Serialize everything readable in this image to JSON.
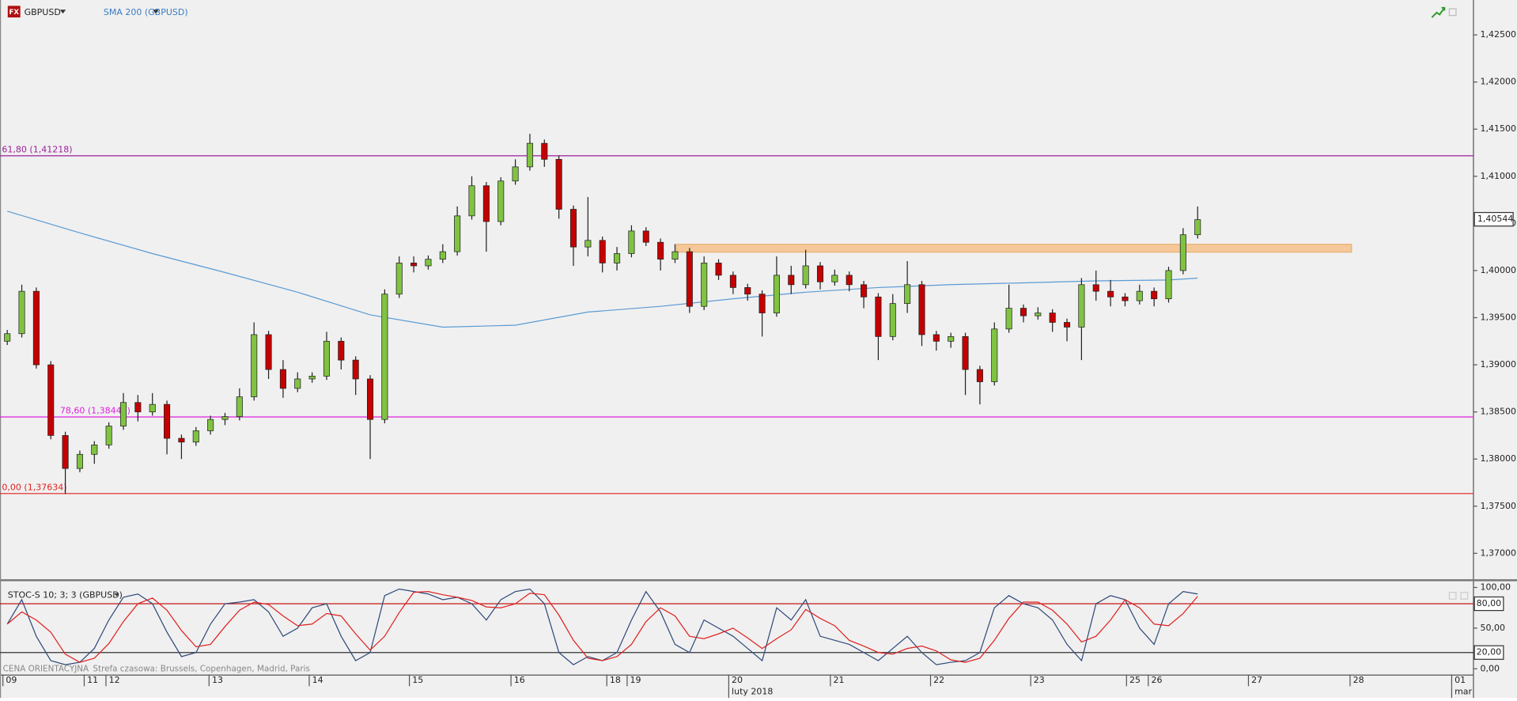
{
  "chart_data": [
    {
      "type": "candlestick",
      "icon": "FX",
      "symbol": "GBPUSD",
      "ylim": [
        1.3673,
        1.4287
      ],
      "yticks": [
        {
          "value": 1.425,
          "label": "1,42500"
        },
        {
          "value": 1.42,
          "label": "1,42000"
        },
        {
          "value": 1.415,
          "label": "1,41500"
        },
        {
          "value": 1.41,
          "label": "1,41000"
        },
        {
          "value": 1.405,
          "label": "1,40500"
        },
        {
          "value": 1.4,
          "label": "1,40000"
        },
        {
          "value": 1.395,
          "label": "1,39500"
        },
        {
          "value": 1.39,
          "label": "1,39000"
        },
        {
          "value": 1.385,
          "label": "1,38500"
        },
        {
          "value": 1.38,
          "label": "1,38000"
        },
        {
          "value": 1.375,
          "label": "1,37500"
        },
        {
          "value": 1.37,
          "label": "1,37000"
        }
      ],
      "xlim": [
        -0.5,
        101
      ],
      "xticks": [
        {
          "value": -0.3,
          "label": "09"
        },
        {
          "value": 5.3,
          "label": "11"
        },
        {
          "value": 6.8,
          "label": "12"
        },
        {
          "value": 13.9,
          "label": "13"
        },
        {
          "value": 20.8,
          "label": "14"
        },
        {
          "value": 27.7,
          "label": "15"
        },
        {
          "value": 34.7,
          "label": "16"
        },
        {
          "value": 41.3,
          "label": "18"
        },
        {
          "value": 42.7,
          "label": "19"
        },
        {
          "value": 49.7,
          "label": "20"
        },
        {
          "value": 56.7,
          "label": "21"
        },
        {
          "value": 63.6,
          "label": "22"
        },
        {
          "value": 70.5,
          "label": "23"
        },
        {
          "value": 77.1,
          "label": "25"
        },
        {
          "value": 78.6,
          "label": "26"
        },
        {
          "value": 85.5,
          "label": "27"
        },
        {
          "value": 92.5,
          "label": "28"
        },
        {
          "value": 99.5,
          "label": "01"
        }
      ],
      "month_ticks": [
        {
          "value": 49.7,
          "label": "luty 2018"
        },
        {
          "value": 99.5,
          "label": "mar"
        }
      ],
      "colors": {
        "up": "#80c342",
        "down": "#c40000"
      },
      "ohlc": [
        [
          1.3925,
          1.3937,
          1.3921,
          1.3933
        ],
        [
          1.3933,
          1.3985,
          1.3929,
          1.3978
        ],
        [
          1.3978,
          1.3982,
          1.3896,
          1.39
        ],
        [
          1.39,
          1.3904,
          1.3821,
          1.3825
        ],
        [
          1.3825,
          1.3829,
          1.3763,
          1.379
        ],
        [
          1.379,
          1.3809,
          1.3786,
          1.3805
        ],
        [
          1.3805,
          1.3819,
          1.3795,
          1.3815
        ],
        [
          1.3815,
          1.3839,
          1.3811,
          1.3835
        ],
        [
          1.3835,
          1.387,
          1.3831,
          1.386
        ],
        [
          1.386,
          1.3868,
          1.384,
          1.385
        ],
        [
          1.385,
          1.387,
          1.3846,
          1.3858
        ],
        [
          1.3858,
          1.3862,
          1.3805,
          1.3822
        ],
        [
          1.3822,
          1.3826,
          1.38,
          1.3818
        ],
        [
          1.3818,
          1.3834,
          1.3814,
          1.383
        ],
        [
          1.383,
          1.3846,
          1.3826,
          1.3842
        ],
        [
          1.3842,
          1.3849,
          1.3836,
          1.3845
        ],
        [
          1.3845,
          1.3875,
          1.3841,
          1.3866
        ],
        [
          1.3866,
          1.3945,
          1.3862,
          1.3932
        ],
        [
          1.3932,
          1.3936,
          1.3885,
          1.3895
        ],
        [
          1.3895,
          1.3905,
          1.3865,
          1.3875
        ],
        [
          1.3875,
          1.3892,
          1.3871,
          1.3885
        ],
        [
          1.3885,
          1.3892,
          1.3881,
          1.3888
        ],
        [
          1.3888,
          1.3935,
          1.3884,
          1.3925
        ],
        [
          1.3925,
          1.3929,
          1.3895,
          1.3905
        ],
        [
          1.3905,
          1.3909,
          1.3868,
          1.3885
        ],
        [
          1.3885,
          1.3889,
          1.38,
          1.3842
        ],
        [
          1.3842,
          1.398,
          1.3838,
          1.3975
        ],
        [
          1.3975,
          1.4015,
          1.3971,
          1.4008
        ],
        [
          1.4008,
          1.4015,
          1.3998,
          1.4005
        ],
        [
          1.4005,
          1.4016,
          1.4001,
          1.4012
        ],
        [
          1.4012,
          1.4028,
          1.4008,
          1.402
        ],
        [
          1.402,
          1.4068,
          1.4016,
          1.4058
        ],
        [
          1.4058,
          1.41,
          1.4054,
          1.409
        ],
        [
          1.409,
          1.4094,
          1.402,
          1.4052
        ],
        [
          1.4052,
          1.4099,
          1.4048,
          1.4095
        ],
        [
          1.4095,
          1.4118,
          1.4091,
          1.411
        ],
        [
          1.411,
          1.4145,
          1.4106,
          1.4135
        ],
        [
          1.4135,
          1.4139,
          1.411,
          1.4118
        ],
        [
          1.4118,
          1.4122,
          1.4055,
          1.4065
        ],
        [
          1.4065,
          1.4069,
          1.4005,
          1.4025
        ],
        [
          1.4025,
          1.4078,
          1.4015,
          1.4032
        ],
        [
          1.4032,
          1.4036,
          1.3998,
          1.4008
        ],
        [
          1.4008,
          1.4025,
          1.4,
          1.4018
        ],
        [
          1.4018,
          1.4048,
          1.4014,
          1.4042
        ],
        [
          1.4042,
          1.4046,
          1.4026,
          1.403
        ],
        [
          1.403,
          1.4034,
          1.4,
          1.4012
        ],
        [
          1.4012,
          1.4028,
          1.4008,
          1.402
        ],
        [
          1.402,
          1.4024,
          1.3955,
          1.3962
        ],
        [
          1.3962,
          1.4015,
          1.3958,
          1.4008
        ],
        [
          1.4008,
          1.4012,
          1.399,
          1.3995
        ],
        [
          1.3995,
          1.3999,
          1.3975,
          1.3982
        ],
        [
          1.3982,
          1.3986,
          1.3968,
          1.3975
        ],
        [
          1.3975,
          1.3979,
          1.393,
          1.3955
        ],
        [
          1.3955,
          1.4015,
          1.3951,
          1.3995
        ],
        [
          1.3995,
          1.4005,
          1.3975,
          1.3985
        ],
        [
          1.3985,
          1.4022,
          1.3981,
          1.4005
        ],
        [
          1.4005,
          1.4009,
          1.398,
          1.3988
        ],
        [
          1.3988,
          1.4001,
          1.3984,
          1.3995
        ],
        [
          1.3995,
          1.3999,
          1.3978,
          1.3985
        ],
        [
          1.3985,
          1.3989,
          1.396,
          1.3972
        ],
        [
          1.3972,
          1.3976,
          1.3905,
          1.393
        ],
        [
          1.393,
          1.3975,
          1.3926,
          1.3965
        ],
        [
          1.3965,
          1.401,
          1.3955,
          1.3985
        ],
        [
          1.3985,
          1.3989,
          1.392,
          1.3932
        ],
        [
          1.3932,
          1.3936,
          1.3915,
          1.3925
        ],
        [
          1.3925,
          1.3934,
          1.3918,
          1.393
        ],
        [
          1.393,
          1.3934,
          1.3868,
          1.3895
        ],
        [
          1.3895,
          1.3899,
          1.3858,
          1.3882
        ],
        [
          1.3882,
          1.3945,
          1.3878,
          1.3938
        ],
        [
          1.3938,
          1.3985,
          1.3934,
          1.396
        ],
        [
          1.396,
          1.3964,
          1.3945,
          1.3952
        ],
        [
          1.3952,
          1.3961,
          1.3948,
          1.3955
        ],
        [
          1.3955,
          1.3959,
          1.3935,
          1.3945
        ],
        [
          1.3945,
          1.3949,
          1.3925,
          1.394
        ],
        [
          1.394,
          1.3992,
          1.3905,
          1.3985
        ],
        [
          1.3985,
          1.4,
          1.3968,
          1.3978
        ],
        [
          1.3978,
          1.399,
          1.3962,
          1.3972
        ],
        [
          1.3972,
          1.3976,
          1.3962,
          1.3968
        ],
        [
          1.3968,
          1.3985,
          1.3964,
          1.3978
        ],
        [
          1.3978,
          1.3982,
          1.3962,
          1.397
        ],
        [
          1.397,
          1.4004,
          1.3966,
          1.4
        ],
        [
          1.4,
          1.4045,
          1.3996,
          1.4038
        ],
        [
          1.4038,
          1.4068,
          1.4034,
          1.4054
        ]
      ],
      "sma": {
        "name": "SMA 200 (GBPUSD)",
        "color": "#5b9bd5",
        "x": [
          0,
          5,
          10,
          15,
          20,
          25,
          30,
          35,
          40,
          45,
          50,
          55,
          60,
          65,
          70,
          75,
          80,
          82
        ],
        "values": [
          1.4063,
          1.404,
          1.4018,
          1.3998,
          1.3977,
          1.3953,
          1.394,
          1.3942,
          1.3956,
          1.3962,
          1.397,
          1.3977,
          1.3982,
          1.3985,
          1.3987,
          1.3989,
          1.399,
          1.3992
        ]
      },
      "levels": [
        {
          "label": "61,80 (1,41218)",
          "value": 1.41218,
          "color": "#9b1f9b"
        },
        {
          "label": "78,60 (1,38447)",
          "value": 1.38447,
          "color": "#e020e0"
        },
        {
          "label": "0,00 (1,37634)",
          "value": 1.37634,
          "color": "#e02020"
        }
      ],
      "zone": {
        "from": 1.40211,
        "to": 1.40263,
        "x": [
          46.1,
          92.6
        ],
        "color": "#f5c89a"
      },
      "last_price": {
        "value": 1.40544,
        "label": "1,40544"
      }
    },
    {
      "type": "stochastic",
      "title": "STOC-S 10; 3; 3 (GBPUSD)",
      "ylim": [
        -7.1,
        107.1
      ],
      "yticks": [
        {
          "value": 100,
          "label": "100,00"
        },
        {
          "value": 50,
          "label": "50,00"
        },
        {
          "value": 0,
          "label": "0,00"
        }
      ],
      "levels": [
        {
          "value": 80,
          "label": "80,00",
          "color": "#c00000"
        },
        {
          "value": 20,
          "label": "20,00",
          "color": "#333333"
        }
      ],
      "series": [
        {
          "color": "#2e4a7a",
          "values": [
            55,
            85,
            40,
            10,
            5,
            8,
            25,
            60,
            88,
            92,
            80,
            45,
            15,
            20,
            55,
            80,
            82,
            85,
            70,
            40,
            50,
            75,
            80,
            40,
            10,
            20,
            90,
            98,
            95,
            92,
            85,
            88,
            80,
            60,
            85,
            95,
            98,
            80,
            20,
            5,
            15,
            10,
            20,
            60,
            95,
            70,
            30,
            20,
            60,
            50,
            40,
            25,
            10,
            75,
            60,
            85,
            40,
            35,
            30,
            20,
            10,
            25,
            40,
            20,
            5,
            8,
            10,
            20,
            75,
            90,
            80,
            75,
            60,
            30,
            10,
            80,
            90,
            85,
            50,
            30,
            80,
            95,
            92
          ]
        },
        {
          "color": "#e02020",
          "values": [
            55,
            70,
            60,
            45,
            18,
            8,
            13,
            31,
            58,
            80,
            87,
            72,
            47,
            27,
            30,
            52,
            72,
            82,
            79,
            65,
            53,
            55,
            68,
            65,
            43,
            23,
            40,
            69,
            94,
            95,
            91,
            88,
            84,
            76,
            75,
            80,
            93,
            91,
            66,
            35,
            13,
            10,
            15,
            30,
            58,
            75,
            65,
            40,
            37,
            43,
            50,
            38,
            25,
            37,
            48,
            73,
            62,
            53,
            35,
            28,
            20,
            18,
            25,
            28,
            22,
            11,
            8,
            13,
            35,
            62,
            82,
            82,
            72,
            55,
            33,
            40,
            60,
            85,
            75,
            55,
            53,
            68,
            89
          ]
        }
      ]
    }
  ],
  "price_note": "CENA ORIENTACYJNA",
  "timezone": "Strefa czasowa: Brussels, Copenhagen, Madrid, Paris"
}
